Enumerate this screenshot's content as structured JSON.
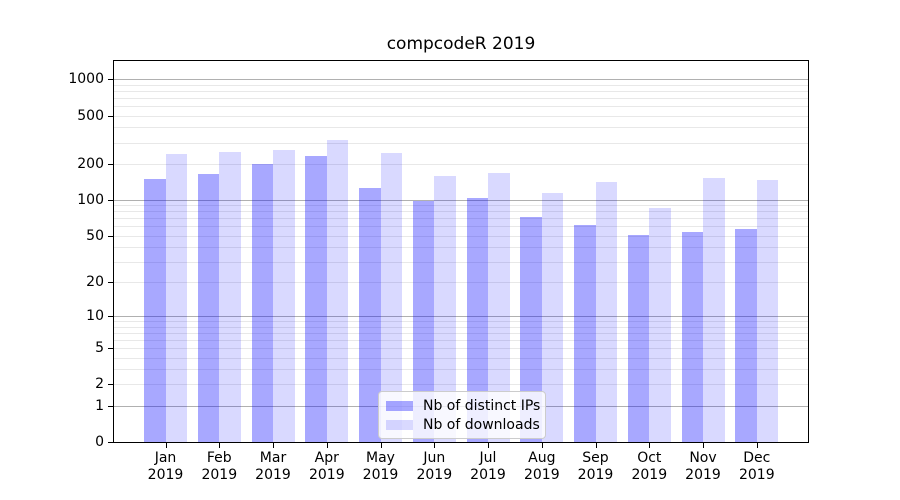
{
  "title": "compcodeR 2019",
  "chart_data": {
    "type": "bar",
    "title": "compcodeR 2019",
    "categories": [
      "Jan",
      "Feb",
      "Mar",
      "Apr",
      "May",
      "Jun",
      "Jul",
      "Aug",
      "Sep",
      "Oct",
      "Nov",
      "Dec"
    ],
    "xtick_year": "2019",
    "series": [
      {
        "name": "Nb of distinct IPs",
        "color": "rgba(0,0,255,0.34)",
        "values": [
          150,
          165,
          200,
          230,
          125,
          98,
          103,
          72,
          61,
          51,
          54,
          57
        ]
      },
      {
        "name": "Nb of downloads",
        "color": "rgba(0,0,255,0.15)",
        "values": [
          240,
          252,
          262,
          317,
          246,
          158,
          166,
          114,
          141,
          86,
          153,
          146
        ]
      }
    ],
    "yscale": "log1p",
    "ylim": [
      0,
      1420
    ],
    "ytick_values": [
      1000,
      500,
      200,
      100,
      50,
      20,
      10,
      5,
      2,
      1,
      0
    ],
    "ytick_labels": [
      "1000",
      "500",
      "200",
      "100",
      "50",
      "20",
      "10",
      "5",
      "2",
      "1",
      "0"
    ],
    "grid": "horizontal",
    "grid_major_values": [
      1,
      10,
      100,
      1000
    ],
    "legend": {
      "position": "lower-center-inside",
      "items": [
        "Nb of distinct IPs",
        "Nb of downloads"
      ]
    },
    "colors": {
      "background": "#ffffff",
      "spine": "#000000",
      "grid_major": "#b0b0b0",
      "grid_minor": "#e8e8e8",
      "text": "#000000"
    }
  }
}
